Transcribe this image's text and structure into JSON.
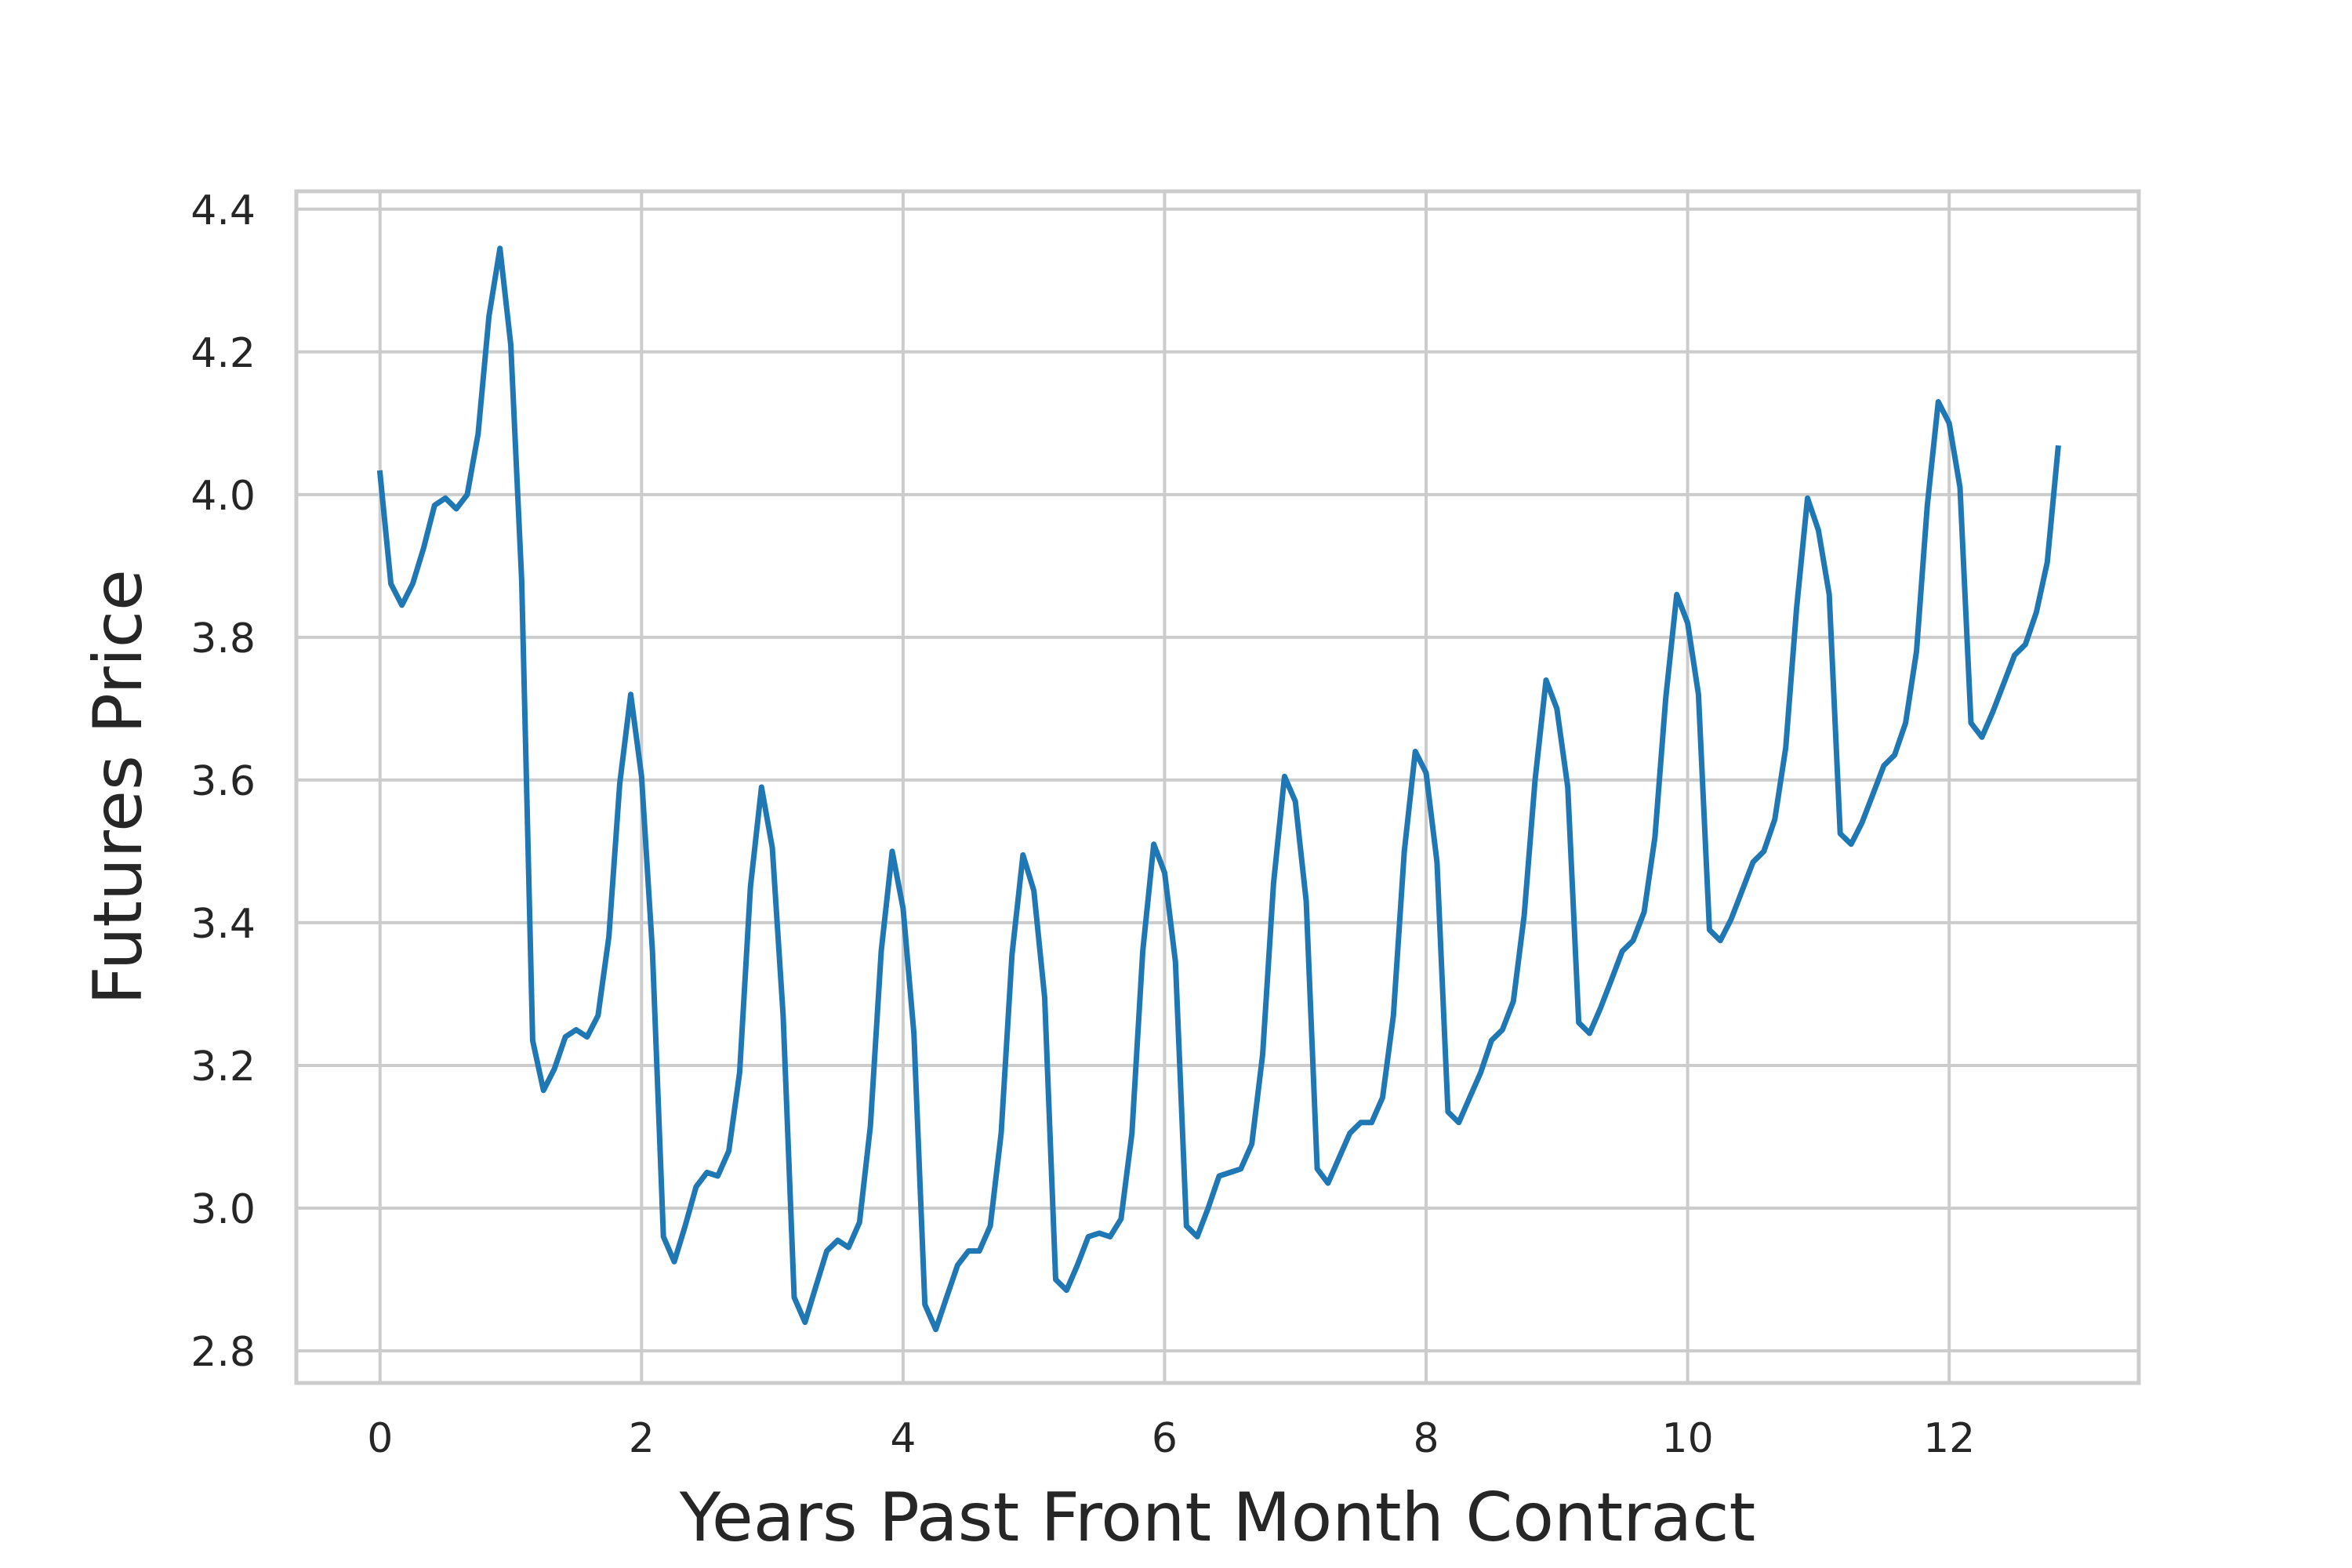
{
  "chart_data": {
    "type": "line",
    "title": "",
    "xlabel": "Years Past Front Month Contract",
    "ylabel": "Futures Price",
    "xlim": [
      -0.64,
      13.45
    ],
    "ylim": [
      2.755,
      4.425
    ],
    "xticks": [
      0,
      2,
      4,
      6,
      8,
      10,
      12
    ],
    "yticks": [
      2.8,
      3.0,
      3.2,
      3.4,
      3.6,
      3.8,
      4.0,
      4.2,
      4.4
    ],
    "xtick_labels": [
      "0",
      "2",
      "4",
      "6",
      "8",
      "10",
      "12"
    ],
    "ytick_labels": [
      "2.8",
      "3.0",
      "3.2",
      "3.4",
      "3.6",
      "3.8",
      "4.0",
      "4.2",
      "4.4"
    ],
    "grid": true,
    "series": [
      {
        "color": "#1f77b4",
        "x": [
          0.0,
          0.083,
          0.167,
          0.25,
          0.333,
          0.417,
          0.5,
          0.583,
          0.667,
          0.75,
          0.833,
          0.917,
          1.0,
          1.083,
          1.167,
          1.25,
          1.333,
          1.417,
          1.5,
          1.583,
          1.667,
          1.75,
          1.833,
          1.917,
          2.0,
          2.083,
          2.167,
          2.25,
          2.333,
          2.417,
          2.5,
          2.583,
          2.667,
          2.75,
          2.833,
          2.917,
          3.0,
          3.083,
          3.167,
          3.25,
          3.333,
          3.417,
          3.5,
          3.583,
          3.667,
          3.75,
          3.833,
          3.917,
          4.0,
          4.083,
          4.167,
          4.25,
          4.333,
          4.417,
          4.5,
          4.583,
          4.667,
          4.75,
          4.833,
          4.917,
          5.0,
          5.083,
          5.167,
          5.25,
          5.333,
          5.417,
          5.5,
          5.583,
          5.667,
          5.75,
          5.833,
          5.917,
          6.0,
          6.083,
          6.167,
          6.25,
          6.333,
          6.417,
          6.5,
          6.583,
          6.667,
          6.75,
          6.833,
          6.917,
          7.0,
          7.083,
          7.167,
          7.25,
          7.333,
          7.417,
          7.5,
          7.583,
          7.667,
          7.75,
          7.833,
          7.917,
          8.0,
          8.083,
          8.167,
          8.25,
          8.333,
          8.417,
          8.5,
          8.583,
          8.667,
          8.75,
          8.833,
          8.917,
          9.0,
          9.083,
          9.167,
          9.25,
          9.333,
          9.417,
          9.5,
          9.583,
          9.667,
          9.75,
          9.833,
          9.917,
          10.0,
          10.083,
          10.167,
          10.25,
          10.333,
          10.417,
          10.5,
          10.583,
          10.667,
          10.75,
          10.833,
          10.917,
          11.0,
          11.083,
          11.167,
          11.25,
          11.333,
          11.417,
          11.5,
          11.583,
          11.667,
          11.75,
          11.833,
          11.917,
          12.0,
          12.083,
          12.167,
          12.25,
          12.333,
          12.417,
          12.5,
          12.583,
          12.667,
          12.75,
          12.833
        ],
        "y": [
          4.03,
          3.875,
          3.845,
          3.875,
          3.925,
          3.985,
          3.995,
          3.98,
          4.0,
          4.085,
          4.25,
          4.345,
          4.21,
          3.88,
          3.235,
          3.165,
          3.195,
          3.24,
          3.25,
          3.24,
          3.27,
          3.38,
          3.595,
          3.72,
          3.605,
          3.36,
          2.96,
          2.925,
          2.975,
          3.03,
          3.05,
          3.045,
          3.08,
          3.19,
          3.45,
          3.59,
          3.505,
          3.27,
          2.875,
          2.84,
          2.89,
          2.94,
          2.955,
          2.945,
          2.98,
          3.115,
          3.36,
          3.5,
          3.42,
          3.245,
          2.865,
          2.83,
          2.875,
          2.92,
          2.94,
          2.94,
          2.975,
          3.105,
          3.355,
          3.495,
          3.445,
          3.295,
          2.9,
          2.885,
          2.92,
          2.96,
          2.965,
          2.96,
          2.985,
          3.105,
          3.36,
          3.51,
          3.47,
          3.345,
          2.975,
          2.96,
          3.0,
          3.045,
          3.05,
          3.055,
          3.09,
          3.215,
          3.455,
          3.605,
          3.57,
          3.43,
          3.055,
          3.035,
          3.07,
          3.105,
          3.12,
          3.12,
          3.155,
          3.27,
          3.5,
          3.64,
          3.61,
          3.485,
          3.135,
          3.12,
          3.155,
          3.19,
          3.235,
          3.25,
          3.29,
          3.41,
          3.6,
          3.74,
          3.7,
          3.59,
          3.26,
          3.245,
          3.28,
          3.32,
          3.36,
          3.375,
          3.415,
          3.52,
          3.715,
          3.86,
          3.82,
          3.72,
          3.39,
          3.375,
          3.405,
          3.445,
          3.485,
          3.5,
          3.545,
          3.645,
          3.84,
          3.995,
          3.95,
          3.86,
          3.525,
          3.51,
          3.54,
          3.58,
          3.62,
          3.635,
          3.68,
          3.78,
          3.985,
          4.13,
          4.1,
          4.01,
          3.68,
          3.66,
          3.695,
          3.735,
          3.775,
          3.79,
          3.835,
          3.905,
          4.065
        ]
      }
    ]
  }
}
